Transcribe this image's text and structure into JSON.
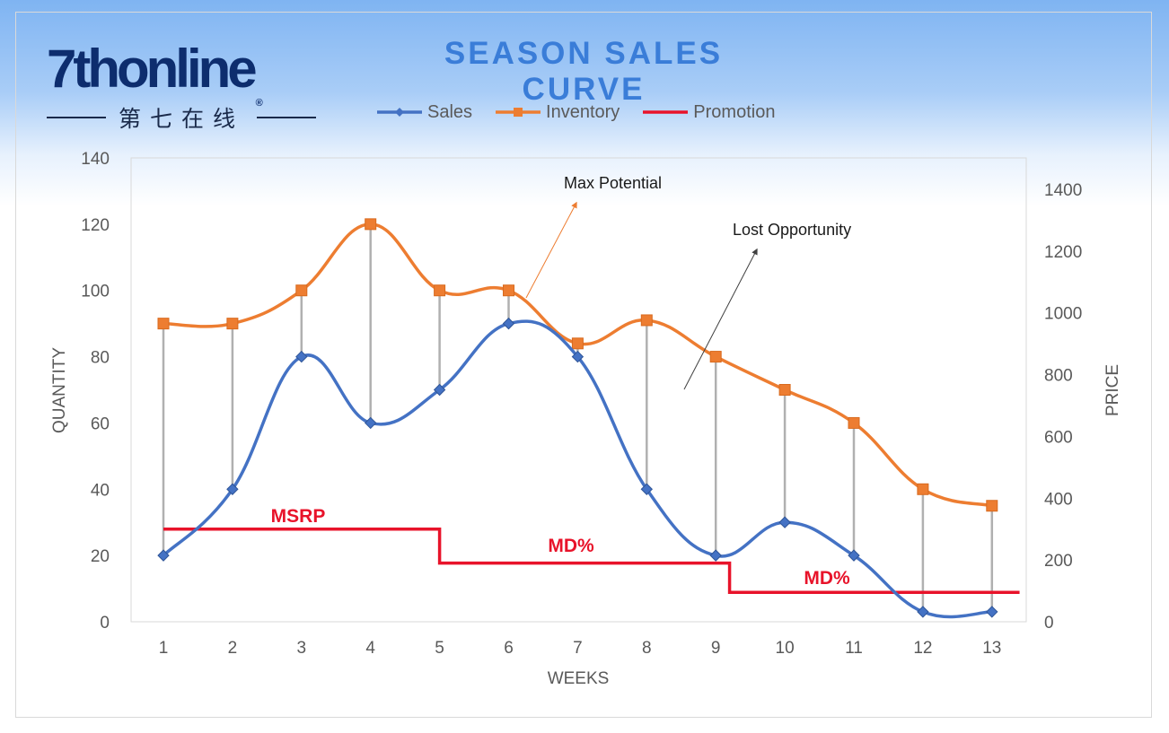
{
  "brand": {
    "logo_text": "7thonline",
    "logo_registered": "®",
    "logo_subtitle": "第七在线"
  },
  "chart_data": {
    "type": "line",
    "title": "SEASON SALES CURVE",
    "xlabel": "WEEKS",
    "ylabel": "QUANTITY",
    "y2label": "PRICE",
    "categories": [
      1,
      2,
      3,
      4,
      5,
      6,
      7,
      8,
      9,
      10,
      11,
      12,
      13
    ],
    "x_tick_labels": [
      "1",
      "2",
      "3",
      "4",
      "5",
      "6",
      "7",
      "8",
      "9",
      "10",
      "11",
      "12",
      "13"
    ],
    "ylim": [
      0,
      140
    ],
    "y_ticks": [
      0,
      20,
      40,
      60,
      80,
      100,
      120,
      140
    ],
    "y2lim": [
      0,
      1500
    ],
    "y2_ticks": [
      0,
      200,
      400,
      600,
      800,
      1000,
      1200,
      1400
    ],
    "grid": false,
    "legend": "top",
    "series": [
      {
        "name": "Sales",
        "color": "#4472c4",
        "marker": "diamond",
        "axis": "left",
        "smooth": true,
        "values": [
          20,
          40,
          80,
          60,
          70,
          90,
          80,
          40,
          20,
          30,
          20,
          3,
          3
        ]
      },
      {
        "name": "Inventory",
        "color": "#ed7d31",
        "marker": "square",
        "axis": "left",
        "smooth": true,
        "values": [
          90,
          90,
          100,
          120,
          100,
          100,
          84,
          91,
          80,
          70,
          60,
          40,
          35
        ]
      },
      {
        "name": "Promotion",
        "color": "#e8132a",
        "axis": "right",
        "step": true,
        "segments": [
          {
            "from": 1,
            "to": 5,
            "price": 300
          },
          {
            "from": 5,
            "to": 9.2,
            "price": 190
          },
          {
            "from": 9.2,
            "to": 13.4,
            "price": 95
          }
        ]
      }
    ],
    "drop_lines": {
      "color": "#b0b0b0",
      "between": [
        "Sales",
        "Inventory"
      ]
    },
    "annotations": [
      {
        "text": "Max Potential",
        "color": "#ed7d31"
      },
      {
        "text": "Lost Opportunity",
        "color": "#404040"
      }
    ],
    "promo_labels": [
      "MSRP",
      "MD%",
      "MD%"
    ]
  }
}
